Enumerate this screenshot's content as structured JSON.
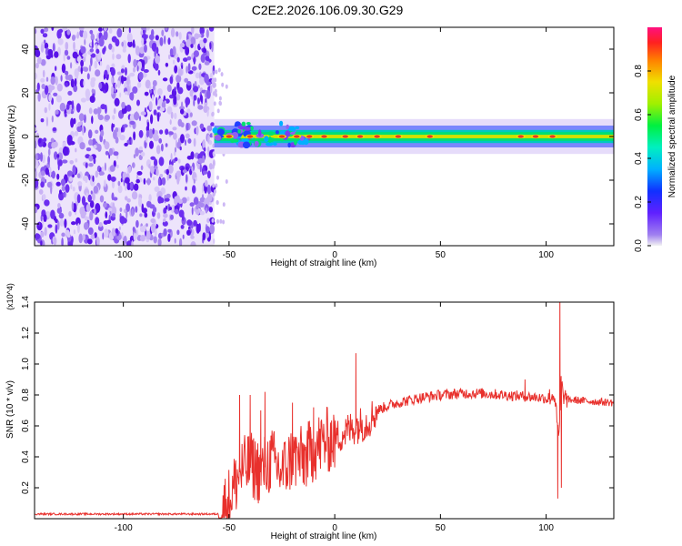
{
  "title": "C2E2.2026.106.09.30.G29",
  "colors": {
    "snr_line": "#e8302c",
    "ridge_core": "#e03a2a",
    "ridge_mid": "#00e070",
    "ridge_outer": "#2040ff",
    "noise": "#7a3cf0"
  },
  "chart_data": [
    {
      "type": "heatmap",
      "xlabel": "Height of straight line (km)",
      "ylabel": "Frequency (Hz)",
      "xlim": [
        -142,
        132
      ],
      "ylim": [
        -50,
        50
      ],
      "xticks": [
        -100,
        -50,
        0,
        50,
        100
      ],
      "yticks": [
        -40,
        -20,
        0,
        20,
        40
      ],
      "colorbar": {
        "label": "Normalized spectral amplitude",
        "range": [
          0,
          1
        ],
        "ticks": [
          "0.0",
          "0.2",
          "0.4",
          "0.6",
          "0.8"
        ]
      },
      "noise_region_x": [
        -142,
        -57
      ],
      "ridge": {
        "frequency_hz": 0,
        "start_x": -57,
        "end_x": 132,
        "outer_halfwidth_hz": 5,
        "mid_halfwidth_hz": 2,
        "core_halfwidth_hz": 0.8,
        "hot_spots_x": [
          -50,
          -40,
          -25,
          -18,
          -12,
          -5,
          5,
          12,
          20,
          30,
          45,
          88,
          95,
          103
        ]
      }
    },
    {
      "type": "line",
      "xlabel": "Height of straight line (km)",
      "ylabel": "SNR (10 * v/v)",
      "y_multiplier": "(x10^4)",
      "xlim": [
        -142,
        132
      ],
      "ylim": [
        0,
        1.4
      ],
      "xticks": [
        -100,
        -50,
        0,
        50,
        100
      ],
      "yticks": [
        "0.2",
        "0.4",
        "0.6",
        "0.8",
        "1.0",
        "1.2",
        "1.4"
      ],
      "series": [
        {
          "anchors_x": [
            -142,
            -55,
            -50,
            -45,
            -40,
            -35,
            -30,
            -25,
            -20,
            -15,
            -10,
            -5,
            0,
            5,
            10,
            15,
            20,
            25,
            30,
            40,
            50,
            60,
            70,
            80,
            90,
            100,
            104,
            106,
            107,
            108,
            110,
            120,
            132
          ],
          "anchors_y": [
            0.03,
            0.03,
            0.12,
            0.3,
            0.35,
            0.3,
            0.38,
            0.3,
            0.4,
            0.38,
            0.45,
            0.5,
            0.52,
            0.56,
            0.6,
            0.62,
            0.7,
            0.73,
            0.75,
            0.78,
            0.8,
            0.81,
            0.81,
            0.8,
            0.79,
            0.78,
            0.8,
            0.5,
            0.9,
            0.8,
            0.77,
            0.76,
            0.75
          ],
          "spikes": [
            {
              "x": -45,
              "y": 0.8
            },
            {
              "x": -40,
              "y": 0.8
            },
            {
              "x": -35,
              "y": 0.7
            },
            {
              "x": -33,
              "y": 0.82
            },
            {
              "x": -20,
              "y": 0.75
            },
            {
              "x": -10,
              "y": 0.72
            },
            {
              "x": 10,
              "y": 1.07
            },
            {
              "x": 90,
              "y": 0.9
            },
            {
              "x": 105.5,
              "y": 0.13
            },
            {
              "x": 106.5,
              "y": 1.45
            },
            {
              "x": 107.2,
              "y": 0.2
            }
          ]
        }
      ]
    }
  ]
}
